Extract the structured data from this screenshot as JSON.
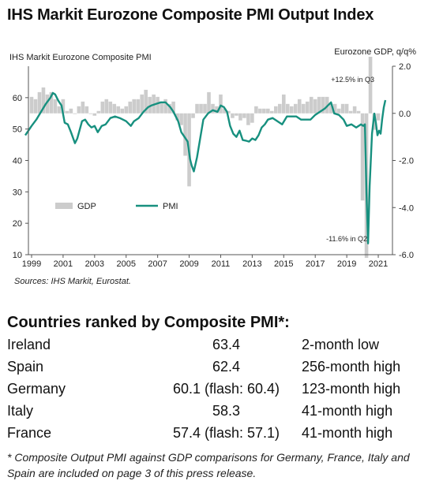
{
  "header": {
    "title": "IHS Markit Eurozone Composite PMI Output Index"
  },
  "chart_data": {
    "type": "bar+line",
    "left_axis_label": "IHS Markit Eurozone Composite  PMI",
    "right_axis_label": "Eurozone GDP, q/q%",
    "left_ylim": [
      10,
      70
    ],
    "left_ticks": [
      "10",
      "20",
      "30",
      "40",
      "50",
      "60"
    ],
    "right_ylim": [
      -6.0,
      2.0
    ],
    "right_ticks": [
      "2.0",
      "0.0",
      "-2.0",
      "-4.0",
      "-6.0"
    ],
    "right_tick_values": [
      2.0,
      0.0,
      -2.0,
      -4.0,
      -6.0
    ],
    "x_ticks": [
      "1999",
      "2001",
      "2003",
      "2005",
      "2007",
      "2009",
      "2011",
      "2013",
      "2015",
      "2017",
      "2019",
      "2021"
    ],
    "x_tick_values": [
      1999,
      2001,
      2003,
      2005,
      2007,
      2009,
      2011,
      2013,
      2015,
      2017,
      2019,
      2021
    ],
    "xlim": [
      1998.8,
      2021.9
    ],
    "grid": false,
    "legend": {
      "position": "lower-left",
      "items": [
        "GDP",
        "PMI"
      ]
    },
    "annotations": [
      "+12.5% in Q3",
      "-11.6% in Q2"
    ],
    "colors": {
      "pmi_line": "#17907f",
      "gdp_bars": "#cccccc",
      "axis": "#555555"
    },
    "series": [
      {
        "name": "GDP",
        "axis": "right",
        "x": [
          1999.0,
          1999.25,
          1999.5,
          1999.75,
          2000.0,
          2000.25,
          2000.5,
          2000.75,
          2001.0,
          2001.25,
          2001.5,
          2001.75,
          2002.0,
          2002.25,
          2002.5,
          2002.75,
          2003.0,
          2003.25,
          2003.5,
          2003.75,
          2004.0,
          2004.25,
          2004.5,
          2004.75,
          2005.0,
          2005.25,
          2005.5,
          2005.75,
          2006.0,
          2006.25,
          2006.5,
          2006.75,
          2007.0,
          2007.25,
          2007.5,
          2007.75,
          2008.0,
          2008.25,
          2008.5,
          2008.75,
          2009.0,
          2009.25,
          2009.5,
          2009.75,
          2010.0,
          2010.25,
          2010.5,
          2010.75,
          2011.0,
          2011.25,
          2011.5,
          2011.75,
          2012.0,
          2012.25,
          2012.5,
          2012.75,
          2013.0,
          2013.25,
          2013.5,
          2013.75,
          2014.0,
          2014.25,
          2014.5,
          2014.75,
          2015.0,
          2015.25,
          2015.5,
          2015.75,
          2016.0,
          2016.25,
          2016.5,
          2016.75,
          2017.0,
          2017.25,
          2017.5,
          2017.75,
          2018.0,
          2018.25,
          2018.5,
          2018.75,
          2019.0,
          2019.25,
          2019.5,
          2019.75,
          2020.0,
          2020.25,
          2020.5,
          2020.75,
          2021.0
        ],
        "values": [
          0.7,
          0.6,
          0.9,
          1.1,
          0.8,
          0.9,
          0.6,
          0.3,
          0.6,
          0.1,
          0.2,
          0.0,
          0.3,
          0.5,
          0.3,
          0.0,
          -0.1,
          0.1,
          0.5,
          0.6,
          0.5,
          0.4,
          0.3,
          0.2,
          0.3,
          0.5,
          0.6,
          0.6,
          0.8,
          1.0,
          0.7,
          0.8,
          0.7,
          0.5,
          0.6,
          0.4,
          0.5,
          -0.3,
          -0.5,
          -1.8,
          -3.1,
          -0.2,
          0.4,
          0.4,
          0.4,
          0.9,
          0.4,
          0.3,
          0.8,
          0.2,
          0.1,
          -0.2,
          -0.1,
          -0.3,
          -0.2,
          -0.5,
          -0.4,
          0.3,
          0.2,
          0.2,
          0.2,
          0.1,
          0.3,
          0.4,
          0.8,
          0.4,
          0.3,
          0.4,
          0.6,
          0.4,
          0.5,
          0.7,
          0.6,
          0.7,
          0.7,
          0.7,
          0.4,
          0.4,
          0.2,
          0.4,
          0.4,
          0.1,
          0.3,
          0.1,
          -3.7,
          -11.6,
          12.5,
          -0.7,
          -0.3
        ]
      },
      {
        "name": "PMI",
        "axis": "left",
        "x": [
          1998.6,
          1999.0,
          1999.3,
          1999.6,
          1999.9,
          2000.2,
          2000.35,
          2000.5,
          2000.7,
          2000.9,
          2001.1,
          2001.3,
          2001.5,
          2001.75,
          2001.9,
          2002.2,
          2002.4,
          2002.6,
          2002.8,
          2003.0,
          2003.2,
          2003.45,
          2003.7,
          2004.0,
          2004.3,
          2004.6,
          2005.0,
          2005.3,
          2005.5,
          2005.8,
          2006.1,
          2006.4,
          2006.6,
          2006.9,
          2007.2,
          2007.5,
          2007.8,
          2008.0,
          2008.3,
          2008.5,
          2008.7,
          2008.9,
          2009.05,
          2009.15,
          2009.3,
          2009.5,
          2009.7,
          2009.9,
          2010.2,
          2010.5,
          2010.8,
          2011.0,
          2011.2,
          2011.4,
          2011.6,
          2011.8,
          2012.0,
          2012.2,
          2012.4,
          2012.6,
          2012.8,
          2013.0,
          2013.2,
          2013.4,
          2013.6,
          2013.8,
          2014.0,
          2014.3,
          2014.6,
          2014.9,
          2015.2,
          2015.5,
          2015.8,
          2016.1,
          2016.4,
          2016.7,
          2017.0,
          2017.3,
          2017.6,
          2017.9,
          2018.0,
          2018.2,
          2018.5,
          2018.8,
          2019.0,
          2019.3,
          2019.6,
          2019.9,
          2020.05,
          2020.15,
          2020.25,
          2020.35,
          2020.45,
          2020.6,
          2020.75,
          2020.85,
          2020.95,
          2021.05,
          2021.15,
          2021.25,
          2021.35,
          2021.45
        ],
        "values": [
          48.0,
          51.0,
          53.0,
          55.5,
          58.0,
          60.0,
          61.5,
          61.0,
          59.0,
          57.5,
          52.0,
          51.5,
          49.0,
          45.5,
          47.0,
          52.5,
          53.0,
          51.5,
          50.5,
          51.0,
          49.0,
          51.0,
          51.5,
          53.5,
          54.0,
          53.5,
          52.5,
          51.0,
          52.5,
          53.5,
          55.5,
          57.0,
          57.5,
          58.0,
          58.5,
          58.5,
          57.0,
          55.5,
          52.5,
          49.0,
          47.5,
          46.0,
          40.5,
          38.5,
          36.5,
          41.0,
          47.0,
          53.0,
          55.0,
          56.0,
          55.5,
          57.5,
          57.0,
          55.5,
          51.0,
          48.5,
          47.5,
          49.5,
          46.5,
          46.3,
          46.0,
          47.0,
          46.5,
          48.0,
          50.5,
          51.5,
          53.0,
          53.5,
          52.5,
          51.5,
          54.0,
          54.0,
          54.0,
          53.0,
          53.0,
          53.0,
          54.5,
          55.5,
          56.5,
          58.0,
          58.5,
          55.0,
          54.5,
          53.0,
          51.0,
          51.5,
          50.5,
          51.5,
          51.0,
          51.5,
          29.7,
          13.6,
          31.9,
          48.5,
          54.9,
          52.0,
          48.0,
          49.5,
          48.5,
          53.2,
          56.9,
          59.2
        ]
      }
    ]
  },
  "sources": "Sources: IHS Markit, Eurostat.",
  "ranking": {
    "title": "Countries ranked by Composite PMI*:",
    "rows": [
      {
        "country": "Ireland",
        "value": "63.4",
        "status": "2-month low"
      },
      {
        "country": "Spain",
        "value": "62.4",
        "status": "256-month high"
      },
      {
        "country": "Germany",
        "value": "60.1 (flash: 60.4)",
        "status": "123-month high"
      },
      {
        "country": "Italy",
        "value": "58.3",
        "status": "41-month high"
      },
      {
        "country": "France",
        "value": "57.4 (flash: 57.1)",
        "status": "41-month high"
      }
    ]
  },
  "footnote": "* Composite Output PMI against GDP comparisons for Germany, France, Italy and Spain are included on page 3 of this press release."
}
